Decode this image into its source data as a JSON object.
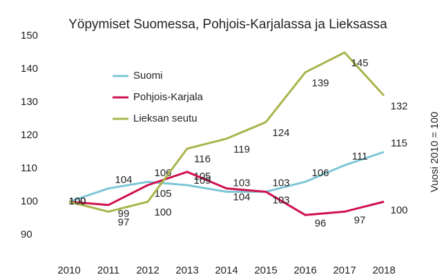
{
  "chart_data": {
    "type": "line",
    "title": "Yöpymiset Suomessa, Pohjois-Karjalassa ja Lieksassa",
    "note": "Vuosi 2010 = 100",
    "categories": [
      "2010",
      "2011",
      "2012",
      "2013",
      "2014",
      "2015",
      "2016",
      "2017",
      "2018"
    ],
    "series": [
      {
        "name": "Suomi",
        "color": "#7cc6d6",
        "values": [
          100,
          104,
          106,
          105,
          103,
          103,
          106,
          111,
          115
        ]
      },
      {
        "name": "Pohjois-Karjala",
        "color": "#d0104c",
        "values": [
          100,
          99,
          105,
          109,
          104,
          103,
          96,
          97,
          100
        ]
      },
      {
        "name": "Lieksan seutu",
        "color": "#a9b44a",
        "values": [
          100,
          97,
          100,
          116,
          119,
          124,
          139,
          145,
          132
        ]
      }
    ],
    "ylim": [
      90,
      150
    ],
    "yticks": [
      90,
      100,
      110,
      120,
      130,
      140,
      150
    ],
    "grid": false
  }
}
